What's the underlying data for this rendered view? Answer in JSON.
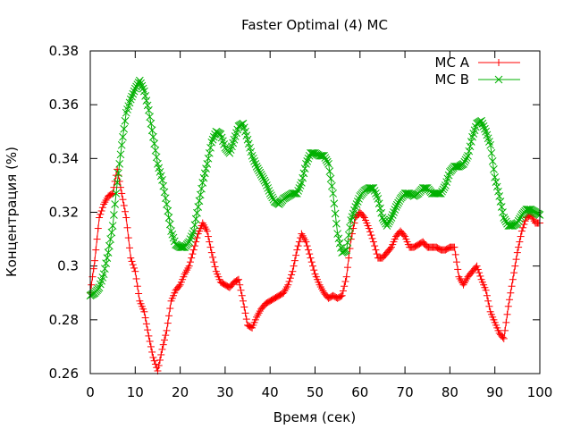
{
  "chart_data": {
    "type": "line",
    "title": "Faster Optimal (4) MC",
    "xlabel": "Время (сек)",
    "ylabel": "Концентрация (%)",
    "xlim": [
      0,
      100
    ],
    "ylim": [
      0.26,
      0.38
    ],
    "xticks": [
      "0",
      "10",
      "20",
      "30",
      "40",
      "50",
      "60",
      "70",
      "80",
      "90",
      "100"
    ],
    "yticks": [
      "0.26",
      "0.28",
      "0.3",
      "0.32",
      "0.34",
      "0.36",
      "0.38"
    ],
    "grid": false,
    "legend_position": "top-right",
    "series": [
      {
        "name": "MC A",
        "color": "#ff0000",
        "marker": "plus",
        "points": [
          [
            0,
            0.29
          ],
          [
            1,
            0.302
          ],
          [
            2,
            0.318
          ],
          [
            3,
            0.323
          ],
          [
            4,
            0.326
          ],
          [
            5,
            0.327
          ],
          [
            6,
            0.336
          ],
          [
            7,
            0.327
          ],
          [
            8,
            0.318
          ],
          [
            9,
            0.303
          ],
          [
            10,
            0.298
          ],
          [
            11,
            0.287
          ],
          [
            12,
            0.283
          ],
          [
            13,
            0.274
          ],
          [
            14,
            0.266
          ],
          [
            15,
            0.261
          ],
          [
            16,
            0.269
          ],
          [
            17,
            0.276
          ],
          [
            18,
            0.287
          ],
          [
            19,
            0.291
          ],
          [
            20,
            0.293
          ],
          [
            21,
            0.297
          ],
          [
            22,
            0.3
          ],
          [
            23,
            0.306
          ],
          [
            24,
            0.312
          ],
          [
            25,
            0.316
          ],
          [
            26,
            0.313
          ],
          [
            27,
            0.305
          ],
          [
            28,
            0.298
          ],
          [
            29,
            0.294
          ],
          [
            30,
            0.293
          ],
          [
            31,
            0.292
          ],
          [
            32,
            0.294
          ],
          [
            33,
            0.295
          ],
          [
            34,
            0.287
          ],
          [
            35,
            0.278
          ],
          [
            36,
            0.277
          ],
          [
            37,
            0.281
          ],
          [
            38,
            0.284
          ],
          [
            39,
            0.286
          ],
          [
            40,
            0.287
          ],
          [
            41,
            0.288
          ],
          [
            42,
            0.289
          ],
          [
            43,
            0.29
          ],
          [
            44,
            0.293
          ],
          [
            45,
            0.298
          ],
          [
            46,
            0.306
          ],
          [
            47,
            0.312
          ],
          [
            48,
            0.309
          ],
          [
            49,
            0.303
          ],
          [
            50,
            0.297
          ],
          [
            51,
            0.293
          ],
          [
            52,
            0.29
          ],
          [
            53,
            0.288
          ],
          [
            54,
            0.289
          ],
          [
            55,
            0.288
          ],
          [
            56,
            0.289
          ],
          [
            57,
            0.296
          ],
          [
            58,
            0.31
          ],
          [
            59,
            0.318
          ],
          [
            60,
            0.32
          ],
          [
            61,
            0.318
          ],
          [
            62,
            0.314
          ],
          [
            63,
            0.309
          ],
          [
            64,
            0.303
          ],
          [
            65,
            0.303
          ],
          [
            66,
            0.305
          ],
          [
            67,
            0.307
          ],
          [
            68,
            0.311
          ],
          [
            69,
            0.313
          ],
          [
            70,
            0.311
          ],
          [
            71,
            0.307
          ],
          [
            72,
            0.307
          ],
          [
            73,
            0.308
          ],
          [
            74,
            0.309
          ],
          [
            75,
            0.307
          ],
          [
            76,
            0.307
          ],
          [
            77,
            0.307
          ],
          [
            78,
            0.306
          ],
          [
            79,
            0.306
          ],
          [
            80,
            0.307
          ],
          [
            81,
            0.307
          ],
          [
            82,
            0.296
          ],
          [
            83,
            0.293
          ],
          [
            84,
            0.296
          ],
          [
            85,
            0.298
          ],
          [
            86,
            0.3
          ],
          [
            87,
            0.295
          ],
          [
            88,
            0.291
          ],
          [
            89,
            0.283
          ],
          [
            90,
            0.279
          ],
          [
            91,
            0.275
          ],
          [
            92,
            0.273
          ],
          [
            93,
            0.285
          ],
          [
            94,
            0.295
          ],
          [
            95,
            0.305
          ],
          [
            96,
            0.313
          ],
          [
            97,
            0.318
          ],
          [
            98,
            0.319
          ],
          [
            99,
            0.316
          ],
          [
            100,
            0.316
          ]
        ]
      },
      {
        "name": "MC B",
        "color": "#00b000",
        "marker": "cross",
        "points": [
          [
            0,
            0.289
          ],
          [
            1,
            0.29
          ],
          [
            2,
            0.292
          ],
          [
            3,
            0.297
          ],
          [
            4,
            0.305
          ],
          [
            5,
            0.315
          ],
          [
            6,
            0.331
          ],
          [
            7,
            0.345
          ],
          [
            8,
            0.357
          ],
          [
            9,
            0.362
          ],
          [
            10,
            0.366
          ],
          [
            11,
            0.369
          ],
          [
            12,
            0.365
          ],
          [
            13,
            0.358
          ],
          [
            14,
            0.348
          ],
          [
            15,
            0.338
          ],
          [
            16,
            0.332
          ],
          [
            17,
            0.323
          ],
          [
            18,
            0.313
          ],
          [
            19,
            0.308
          ],
          [
            20,
            0.307
          ],
          [
            21,
            0.307
          ],
          [
            22,
            0.309
          ],
          [
            23,
            0.313
          ],
          [
            24,
            0.322
          ],
          [
            25,
            0.331
          ],
          [
            26,
            0.338
          ],
          [
            27,
            0.346
          ],
          [
            28,
            0.35
          ],
          [
            29,
            0.349
          ],
          [
            30,
            0.344
          ],
          [
            31,
            0.342
          ],
          [
            32,
            0.347
          ],
          [
            33,
            0.352
          ],
          [
            34,
            0.353
          ],
          [
            35,
            0.347
          ],
          [
            36,
            0.341
          ],
          [
            37,
            0.337
          ],
          [
            38,
            0.334
          ],
          [
            39,
            0.331
          ],
          [
            40,
            0.327
          ],
          [
            41,
            0.324
          ],
          [
            42,
            0.323
          ],
          [
            43,
            0.325
          ],
          [
            44,
            0.326
          ],
          [
            45,
            0.327
          ],
          [
            46,
            0.327
          ],
          [
            47,
            0.331
          ],
          [
            48,
            0.338
          ],
          [
            49,
            0.342
          ],
          [
            50,
            0.342
          ],
          [
            51,
            0.341
          ],
          [
            52,
            0.341
          ],
          [
            53,
            0.338
          ],
          [
            54,
            0.327
          ],
          [
            55,
            0.312
          ],
          [
            56,
            0.305
          ],
          [
            57,
            0.306
          ],
          [
            58,
            0.317
          ],
          [
            59,
            0.322
          ],
          [
            60,
            0.326
          ],
          [
            61,
            0.328
          ],
          [
            62,
            0.329
          ],
          [
            63,
            0.329
          ],
          [
            64,
            0.325
          ],
          [
            65,
            0.318
          ],
          [
            66,
            0.315
          ],
          [
            67,
            0.318
          ],
          [
            68,
            0.322
          ],
          [
            69,
            0.325
          ],
          [
            70,
            0.327
          ],
          [
            71,
            0.327
          ],
          [
            72,
            0.326
          ],
          [
            73,
            0.327
          ],
          [
            74,
            0.329
          ],
          [
            75,
            0.329
          ],
          [
            76,
            0.327
          ],
          [
            77,
            0.327
          ],
          [
            78,
            0.327
          ],
          [
            79,
            0.33
          ],
          [
            80,
            0.335
          ],
          [
            81,
            0.337
          ],
          [
            82,
            0.337
          ],
          [
            83,
            0.338
          ],
          [
            84,
            0.341
          ],
          [
            85,
            0.348
          ],
          [
            86,
            0.353
          ],
          [
            87,
            0.354
          ],
          [
            88,
            0.35
          ],
          [
            89,
            0.345
          ],
          [
            90,
            0.333
          ],
          [
            91,
            0.326
          ],
          [
            92,
            0.318
          ],
          [
            93,
            0.315
          ],
          [
            94,
            0.315
          ],
          [
            95,
            0.316
          ],
          [
            96,
            0.319
          ],
          [
            97,
            0.321
          ],
          [
            98,
            0.321
          ],
          [
            99,
            0.32
          ],
          [
            100,
            0.319
          ]
        ]
      }
    ]
  }
}
